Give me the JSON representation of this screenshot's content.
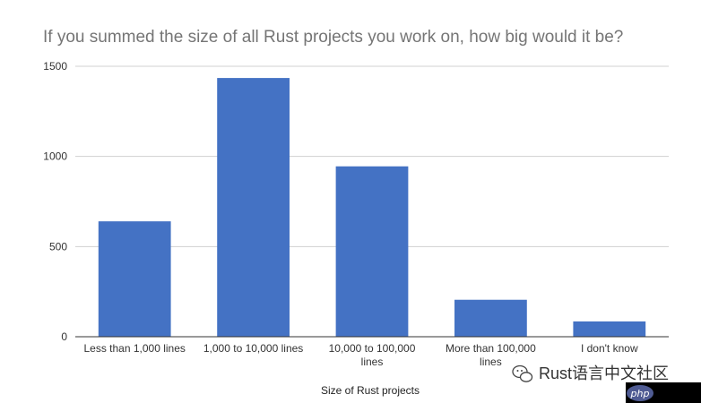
{
  "chart_data": {
    "type": "bar",
    "title": "If you summed the size of all Rust projects you work on, how big would it be?",
    "xlabel": "Size of Rust projects",
    "ylabel": "",
    "ylim": [
      0,
      1500
    ],
    "yticks": [
      0,
      500,
      1000,
      1500
    ],
    "grid": true,
    "legend": "none",
    "bar_color": "#4472c4",
    "categories": [
      "Less than 1,000 lines",
      "1,000 to 10,000 lines",
      "10,000 to 100,000 lines",
      "More than 100,000 lines",
      "I don't know"
    ],
    "values": [
      640,
      1435,
      945,
      205,
      85
    ]
  },
  "watermark": {
    "text": "Rust语言中文社区",
    "icon": "wechat-icon"
  },
  "badge": {
    "text": "php",
    "color": "#4f5b93"
  }
}
